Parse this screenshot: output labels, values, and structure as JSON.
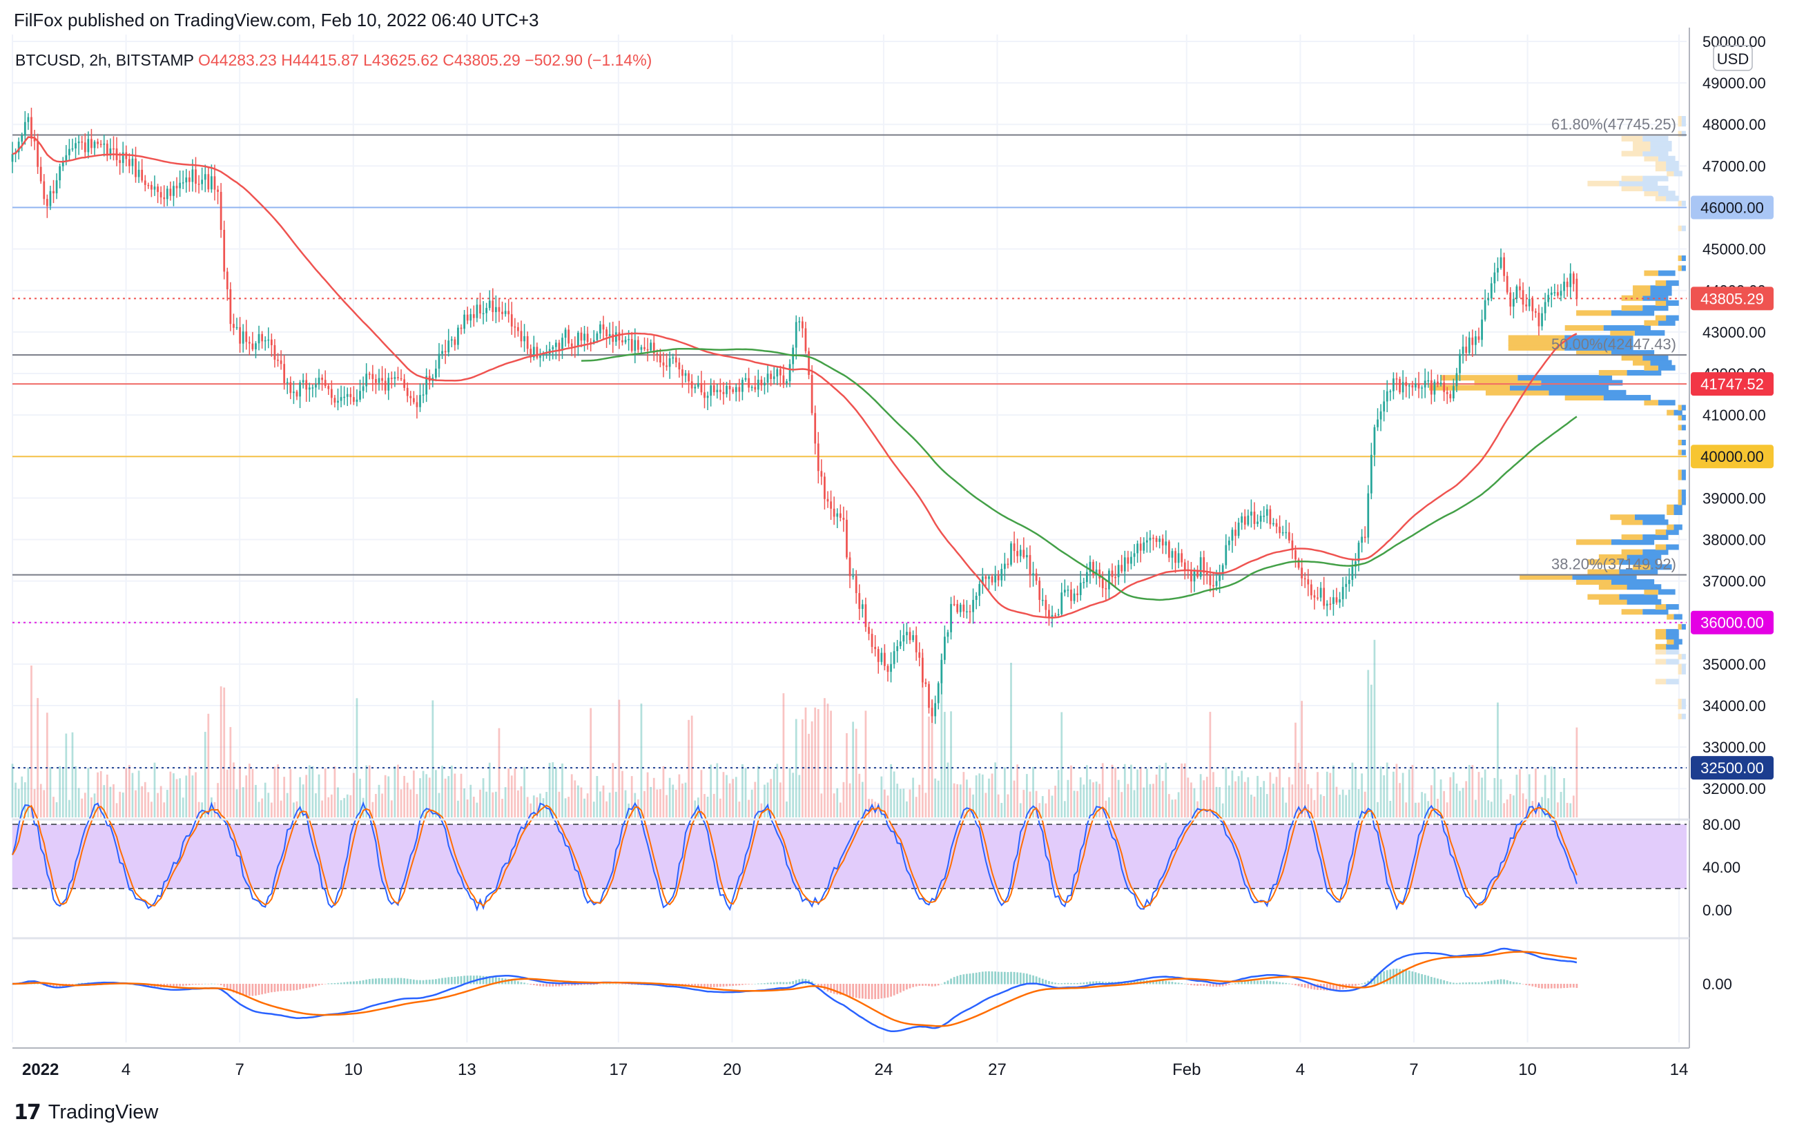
{
  "header": {
    "published_text": "FilFox published on TradingView.com, Feb 10, 2022 06:40 UTC+3"
  },
  "footer": {
    "brand_text": "TradingView"
  },
  "colors": {
    "up": "#26a69a",
    "down": "#ef5350",
    "grid": "#f0f3fa",
    "rsi_band": "#e2ccfb",
    "ma_red": "#ef5350",
    "ma_green": "#43a047",
    "macd_blue": "#2962ff",
    "signal_orange": "#ff6d00"
  },
  "chart_data": {
    "type": "candlestick",
    "symbol_legend": {
      "symbol": "BTCUSD, 2h, BITSTAMP",
      "open": "O44283.23",
      "high": "H44415.87",
      "low": "L43625.62",
      "close": "C43805.29",
      "change": "−502.90 (−1.14%)"
    },
    "currency_label": "USD",
    "price_axis": {
      "range": [
        31500,
        50000
      ],
      "ticks": [
        "50000.00",
        "49000.00",
        "48000.00",
        "47000.00",
        "46000.00",
        "45000.00",
        "44000.00",
        "43000.00",
        "42000.00",
        "41000.00",
        "40000.00",
        "39000.00",
        "38000.00",
        "37000.00",
        "36000.00",
        "35000.00",
        "34000.00",
        "33000.00",
        "32500.00",
        "32000.00"
      ]
    },
    "time_axis": {
      "range": [
        1,
        14.5
      ],
      "labels": [
        {
          "t": 1,
          "label": "2022"
        },
        {
          "t": 4,
          "label": "4"
        },
        {
          "t": 7,
          "label": "7"
        },
        {
          "t": 10,
          "label": "10"
        },
        {
          "t": 13,
          "label": "13"
        },
        {
          "t": 17,
          "label": "17"
        },
        {
          "t": 20,
          "label": "20"
        },
        {
          "t": 24,
          "label": "24"
        },
        {
          "t": 27,
          "label": "27"
        },
        {
          "t": 32,
          "label": "Feb"
        },
        {
          "t": 35,
          "label": "4"
        },
        {
          "t": 38,
          "label": "7"
        },
        {
          "t": 41,
          "label": "10"
        },
        {
          "t": 45,
          "label": "14"
        }
      ]
    },
    "anchors": [
      [
        0,
        47100
      ],
      [
        0.4,
        48200
      ],
      [
        0.9,
        46000
      ],
      [
        1.5,
        47600
      ],
      [
        2.2,
        47400
      ],
      [
        3.0,
        47200
      ],
      [
        3.6,
        46500
      ],
      [
        4.2,
        46300
      ],
      [
        4.8,
        46800
      ],
      [
        5.4,
        46500
      ],
      [
        5.6,
        44300
      ],
      [
        5.8,
        43100
      ],
      [
        6.2,
        42700
      ],
      [
        6.6,
        42900
      ],
      [
        7.0,
        42200
      ],
      [
        7.4,
        41500
      ],
      [
        8.0,
        41800
      ],
      [
        8.6,
        41400
      ],
      [
        9.0,
        41300
      ],
      [
        9.4,
        42100
      ],
      [
        9.8,
        41700
      ],
      [
        10.3,
        41800
      ],
      [
        10.7,
        41200
      ],
      [
        11.0,
        41900
      ],
      [
        11.5,
        42600
      ],
      [
        12.0,
        43400
      ],
      [
        12.6,
        43600
      ],
      [
        13.1,
        43300
      ],
      [
        13.6,
        42600
      ],
      [
        14.2,
        42400
      ],
      [
        14.6,
        42900
      ],
      [
        15.0,
        42800
      ],
      [
        15.6,
        43000
      ],
      [
        16.2,
        42700
      ],
      [
        16.8,
        42700
      ],
      [
        17.3,
        42300
      ],
      [
        17.8,
        41900
      ],
      [
        18.3,
        41600
      ],
      [
        18.8,
        41600
      ],
      [
        19.3,
        41800
      ],
      [
        19.8,
        41800
      ],
      [
        20.5,
        42000
      ],
      [
        20.7,
        43200
      ],
      [
        20.9,
        43000
      ],
      [
        21.1,
        41200
      ],
      [
        21.3,
        39500
      ],
      [
        21.6,
        38700
      ],
      [
        21.9,
        38600
      ],
      [
        22.1,
        37200
      ],
      [
        22.4,
        36400
      ],
      [
        22.7,
        35300
      ],
      [
        23.1,
        35000
      ],
      [
        23.5,
        35700
      ],
      [
        23.9,
        35400
      ],
      [
        24.1,
        34400
      ],
      [
        24.3,
        33700
      ],
      [
        24.5,
        35000
      ],
      [
        24.8,
        36400
      ],
      [
        25.2,
        36300
      ],
      [
        25.6,
        36900
      ],
      [
        26.0,
        37100
      ],
      [
        26.4,
        37800
      ],
      [
        26.7,
        37600
      ],
      [
        26.9,
        37200
      ],
      [
        27.2,
        36500
      ],
      [
        27.5,
        36100
      ],
      [
        27.8,
        36800
      ],
      [
        28.1,
        36500
      ],
      [
        28.4,
        37400
      ],
      [
        28.8,
        36900
      ],
      [
        29.2,
        37300
      ],
      [
        29.6,
        37800
      ],
      [
        30.0,
        38100
      ],
      [
        30.4,
        37800
      ],
      [
        30.8,
        37600
      ],
      [
        31.1,
        37100
      ],
      [
        31.4,
        37400
      ],
      [
        31.7,
        37000
      ],
      [
        32.0,
        37600
      ],
      [
        32.3,
        38300
      ],
      [
        32.6,
        38400
      ],
      [
        33.0,
        38700
      ],
      [
        33.4,
        38200
      ],
      [
        33.7,
        38200
      ],
      [
        33.9,
        37600
      ],
      [
        34.2,
        36900
      ],
      [
        34.6,
        36600
      ],
      [
        34.9,
        36600
      ],
      [
        35.2,
        36800
      ],
      [
        35.5,
        37700
      ],
      [
        35.7,
        38000
      ],
      [
        35.9,
        40300
      ],
      [
        36.1,
        41200
      ],
      [
        36.4,
        41800
      ],
      [
        36.8,
        41600
      ],
      [
        37.2,
        41700
      ],
      [
        37.6,
        41700
      ],
      [
        38.0,
        41600
      ],
      [
        38.3,
        42600
      ],
      [
        38.7,
        42900
      ],
      [
        38.9,
        43700
      ],
      [
        39.1,
        44300
      ],
      [
        39.3,
        45000
      ],
      [
        39.5,
        43600
      ],
      [
        39.7,
        43900
      ],
      [
        40.0,
        43700
      ],
      [
        40.3,
        43300
      ],
      [
        40.6,
        43800
      ],
      [
        40.9,
        44000
      ],
      [
        41.1,
        44300
      ],
      [
        41.3,
        43800
      ]
    ],
    "horizontal_levels": [
      {
        "price": 47745.25,
        "label": "61.80%(47745.25)",
        "type": "fib"
      },
      {
        "price": 46000,
        "label": "46000.00",
        "type": "blue"
      },
      {
        "price": 43805.29,
        "label": "43805.29",
        "type": "last"
      },
      {
        "price": 42447.43,
        "label": "50.00%(42447.43)",
        "type": "fib"
      },
      {
        "price": 41747.52,
        "label": "41747.52",
        "type": "red"
      },
      {
        "price": 40000,
        "label": "40000.00",
        "type": "yellow"
      },
      {
        "price": 37149.92,
        "label": "38.20%(37149.92)",
        "type": "fib"
      },
      {
        "price": 36000,
        "label": "36000.00",
        "type": "magenta"
      },
      {
        "price": 32500,
        "label": "32500.00",
        "type": "navy"
      }
    ],
    "rsi_axis": {
      "range": [
        0,
        100
      ],
      "ticks": [
        "80.00",
        "40.00",
        "0.00"
      ],
      "band": [
        20,
        80
      ]
    },
    "macd_axis": {
      "ticks": [
        "0.00"
      ]
    },
    "legend": "none",
    "grid": true
  }
}
